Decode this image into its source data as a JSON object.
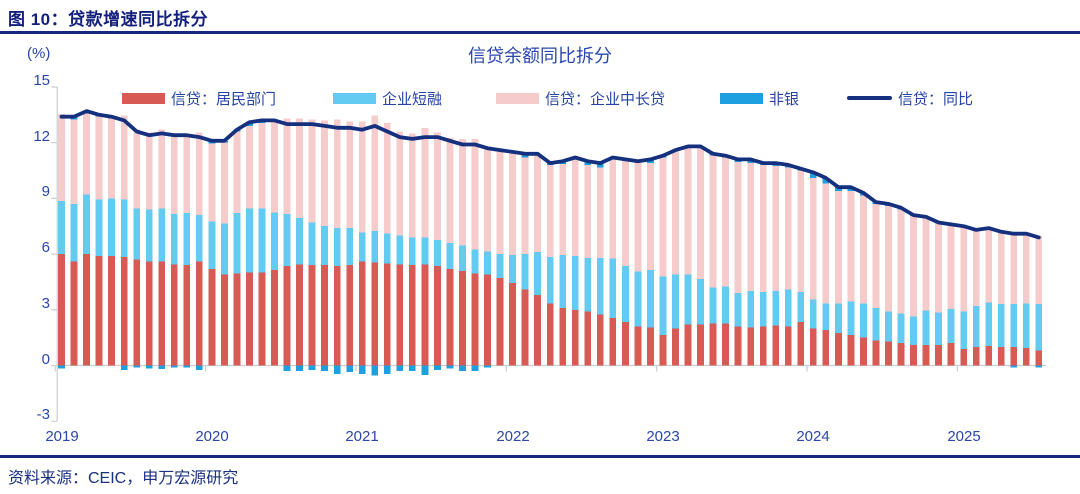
{
  "figure_title": "图 10：贷款增速同比拆分",
  "source_note": "资料来源：CEIC，申万宏源研究",
  "colors": {
    "header_navy": "#16277E",
    "text_blue": "#2642A5",
    "household_red": "#D75A54",
    "short_fin_blue": "#63CBF2",
    "mid_long_pink": "#F5CBCB",
    "nonbank_blue": "#1E9FE0",
    "line_navy": "#14307F",
    "axis_gray": "#C9CDD2"
  },
  "chart_data": {
    "type": "bar",
    "subtype": "stacked-bar-with-line",
    "title": "信贷余额同比拆分",
    "ylabel": "(%)",
    "ylim": [
      -3,
      15
    ],
    "yticks": [
      "15",
      "12",
      "9",
      "6",
      "3",
      "0",
      "-3"
    ],
    "ytick_values": [
      15,
      12,
      9,
      6,
      3,
      0,
      -3
    ],
    "xticks": [
      "2019",
      "2020",
      "2021",
      "2022",
      "2023",
      "2024",
      "2025"
    ],
    "grid": false,
    "legend_position": "top",
    "x": [
      "2019-01",
      "2019-02",
      "2019-03",
      "2019-04",
      "2019-05",
      "2019-06",
      "2019-07",
      "2019-08",
      "2019-09",
      "2019-10",
      "2019-11",
      "2019-12",
      "2020-01",
      "2020-02",
      "2020-03",
      "2020-04",
      "2020-05",
      "2020-06",
      "2020-07",
      "2020-08",
      "2020-09",
      "2020-10",
      "2020-11",
      "2020-12",
      "2021-01",
      "2021-02",
      "2021-03",
      "2021-04",
      "2021-05",
      "2021-06",
      "2021-07",
      "2021-08",
      "2021-09",
      "2021-10",
      "2021-11",
      "2021-12",
      "2022-01",
      "2022-02",
      "2022-03",
      "2022-04",
      "2022-05",
      "2022-06",
      "2022-07",
      "2022-08",
      "2022-09",
      "2022-10",
      "2022-11",
      "2022-12",
      "2023-01",
      "2023-02",
      "2023-03",
      "2023-04",
      "2023-05",
      "2023-06",
      "2023-07",
      "2023-08",
      "2023-09",
      "2023-10",
      "2023-11",
      "2023-12",
      "2024-01",
      "2024-02",
      "2024-03",
      "2024-04",
      "2024-05",
      "2024-06",
      "2024-07",
      "2024-08",
      "2024-09",
      "2024-10",
      "2024-11",
      "2024-12",
      "2025-01",
      "2025-02",
      "2025-03",
      "2025-04",
      "2025-05",
      "2025-06",
      "2025-07"
    ],
    "series": [
      {
        "name": "信贷：居民部门",
        "type": "bar",
        "color": "#D75A54",
        "values": [
          6.0,
          5.6,
          6.0,
          5.9,
          5.9,
          5.85,
          5.7,
          5.6,
          5.6,
          5.45,
          5.4,
          5.6,
          5.2,
          4.9,
          4.95,
          5.0,
          5.0,
          5.15,
          5.35,
          5.45,
          5.4,
          5.4,
          5.35,
          5.4,
          5.6,
          5.55,
          5.5,
          5.45,
          5.4,
          5.45,
          5.35,
          5.2,
          5.1,
          4.95,
          4.9,
          4.7,
          4.45,
          4.1,
          3.8,
          3.35,
          3.1,
          3.0,
          2.9,
          2.75,
          2.55,
          2.35,
          2.1,
          2.05,
          1.65,
          2.0,
          2.2,
          2.2,
          2.25,
          2.25,
          2.1,
          2.05,
          2.1,
          2.15,
          2.1,
          2.35,
          2.0,
          1.9,
          1.75,
          1.65,
          1.5,
          1.35,
          1.3,
          1.2,
          1.1,
          1.1,
          1.1,
          1.2,
          0.9,
          1.0,
          1.05,
          1.0,
          1.0,
          0.95,
          0.8
        ]
      },
      {
        "name": "企业短融",
        "type": "bar",
        "color": "#63CBF2",
        "values": [
          2.85,
          3.1,
          3.2,
          3.05,
          3.1,
          3.1,
          2.75,
          2.8,
          2.85,
          2.7,
          2.8,
          2.5,
          2.55,
          2.75,
          3.25,
          3.45,
          3.45,
          3.1,
          2.8,
          2.5,
          2.3,
          2.1,
          2.05,
          2.0,
          1.55,
          1.7,
          1.6,
          1.55,
          1.5,
          1.45,
          1.4,
          1.4,
          1.35,
          1.3,
          1.25,
          1.3,
          1.5,
          1.9,
          2.3,
          2.5,
          2.85,
          2.9,
          2.9,
          3.05,
          3.2,
          3.0,
          2.95,
          3.1,
          3.15,
          2.9,
          2.7,
          2.45,
          1.95,
          2.0,
          1.8,
          1.95,
          1.85,
          1.85,
          2.0,
          1.6,
          1.55,
          1.45,
          1.6,
          1.8,
          1.85,
          1.75,
          1.6,
          1.6,
          1.55,
          1.85,
          1.75,
          1.85,
          2.0,
          2.2,
          2.35,
          2.3,
          2.3,
          2.4,
          2.5
        ]
      },
      {
        "name": "信贷：企业中长贷",
        "type": "bar",
        "color": "#F5CBCB",
        "values": [
          4.7,
          4.55,
          4.5,
          4.45,
          4.3,
          4.5,
          4.25,
          4.15,
          4.25,
          4.35,
          4.3,
          4.45,
          4.2,
          4.35,
          4.4,
          4.45,
          4.6,
          4.85,
          5.15,
          5.35,
          5.55,
          5.7,
          5.85,
          5.75,
          6.0,
          6.2,
          5.95,
          5.6,
          5.6,
          5.9,
          5.8,
          5.65,
          5.75,
          5.95,
          5.65,
          5.6,
          5.55,
          5.2,
          5.3,
          4.95,
          4.9,
          5.3,
          5.0,
          4.85,
          5.45,
          5.75,
          5.95,
          5.75,
          6.4,
          6.7,
          6.9,
          7.05,
          7.1,
          6.95,
          7.05,
          6.9,
          6.85,
          6.75,
          6.55,
          6.55,
          6.55,
          6.45,
          6.05,
          5.95,
          5.8,
          5.6,
          5.7,
          5.6,
          5.4,
          5.05,
          4.85,
          4.55,
          4.6,
          4.1,
          4.0,
          3.9,
          3.9,
          3.75,
          3.7
        ]
      },
      {
        "name": "非银",
        "type": "bar",
        "color": "#1E9FE0",
        "values": [
          -0.15,
          0.15,
          0.0,
          0.1,
          0.1,
          -0.25,
          -0.1,
          -0.15,
          -0.2,
          -0.1,
          -0.1,
          -0.25,
          0.15,
          0.1,
          0.1,
          0.2,
          0.15,
          0.1,
          -0.3,
          -0.3,
          -0.25,
          -0.3,
          -0.45,
          -0.35,
          -0.45,
          -0.55,
          -0.45,
          -0.3,
          -0.3,
          -0.5,
          -0.25,
          -0.15,
          -0.3,
          -0.3,
          -0.1,
          0.0,
          0.0,
          0.2,
          0.0,
          0.1,
          0.15,
          0.0,
          0.2,
          0.25,
          0.0,
          0.0,
          0.0,
          0.2,
          0.1,
          0.0,
          0.0,
          0.1,
          0.1,
          0.1,
          0.15,
          0.2,
          0.1,
          0.15,
          0.15,
          0.1,
          0.3,
          0.3,
          0.2,
          0.2,
          0.15,
          0.1,
          0.1,
          0.1,
          0.05,
          0.0,
          0.0,
          0.0,
          0.0,
          0.0,
          0.0,
          0.0,
          -0.1,
          0.0,
          -0.1
        ]
      },
      {
        "name": "信贷：同比",
        "type": "line",
        "color": "#14307F",
        "values": [
          13.4,
          13.4,
          13.7,
          13.5,
          13.4,
          13.2,
          12.6,
          12.4,
          12.5,
          12.4,
          12.4,
          12.3,
          12.1,
          12.1,
          12.7,
          13.1,
          13.2,
          13.2,
          13.0,
          13.0,
          13.0,
          12.9,
          12.8,
          12.8,
          12.7,
          12.9,
          12.6,
          12.3,
          12.2,
          12.3,
          12.3,
          12.1,
          11.9,
          11.9,
          11.7,
          11.6,
          11.5,
          11.4,
          11.4,
          10.9,
          11.0,
          11.2,
          11.0,
          10.9,
          11.2,
          11.1,
          11.0,
          11.1,
          11.3,
          11.6,
          11.8,
          11.8,
          11.4,
          11.3,
          11.1,
          11.1,
          10.9,
          10.9,
          10.8,
          10.6,
          10.4,
          10.1,
          9.6,
          9.6,
          9.3,
          8.8,
          8.7,
          8.5,
          8.1,
          8.0,
          7.7,
          7.6,
          7.5,
          7.3,
          7.4,
          7.2,
          7.1,
          7.1,
          6.9
        ]
      }
    ]
  }
}
